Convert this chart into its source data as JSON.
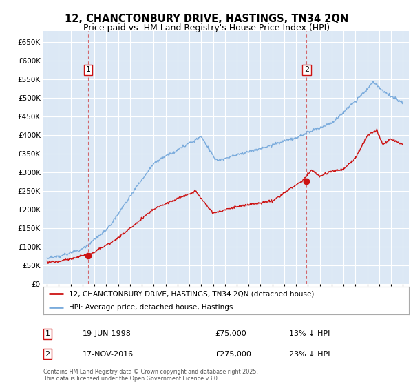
{
  "title": "12, CHANCTONBURY DRIVE, HASTINGS, TN34 2QN",
  "subtitle": "Price paid vs. HM Land Registry's House Price Index (HPI)",
  "background_color": "#f0f0f0",
  "plot_bg_color": "#dce8f5",
  "grid_color": "#ffffff",
  "outer_bg": "#ffffff",
  "red_line_color": "#cc1111",
  "blue_line_color": "#7aabdc",
  "sale1_year": 1998.47,
  "sale1_price": 75000,
  "sale1_label": "1",
  "sale1_date": "19-JUN-1998",
  "sale1_price_str": "£75,000",
  "sale1_pct": "13% ↓ HPI",
  "sale2_year": 2016.88,
  "sale2_price": 275000,
  "sale2_label": "2",
  "sale2_date": "17-NOV-2016",
  "sale2_price_str": "£275,000",
  "sale2_pct": "23% ↓ HPI",
  "ylim_min": 0,
  "ylim_max": 680000,
  "yticks": [
    0,
    50000,
    100000,
    150000,
    200000,
    250000,
    300000,
    350000,
    400000,
    450000,
    500000,
    550000,
    600000,
    650000
  ],
  "xmin": 1994.7,
  "xmax": 2025.5,
  "copyright": "Contains HM Land Registry data © Crown copyright and database right 2025.\nThis data is licensed under the Open Government Licence v3.0.",
  "legend1": "12, CHANCTONBURY DRIVE, HASTINGS, TN34 2QN (detached house)",
  "legend2": "HPI: Average price, detached house, Hastings",
  "title_fontsize": 10.5,
  "subtitle_fontsize": 9,
  "axis_fontsize": 7.5,
  "marker1_y": 575000,
  "marker2_y": 575000
}
